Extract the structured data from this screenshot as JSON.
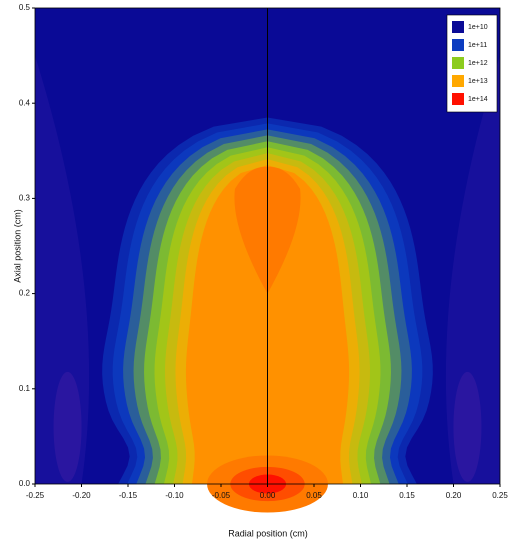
{
  "chart_data": {
    "type": "contour",
    "xlabel": "Radial position (cm)",
    "ylabel": "Axial position (cm)",
    "xlim": [
      -0.25,
      0.25
    ],
    "ylim": [
      0,
      0.5
    ],
    "xticks": [
      -0.25,
      {
        "value": -0.2,
        "label": "-0.20"
      },
      -0.15,
      {
        "value": -0.1,
        "label": "-0.10"
      },
      -0.05,
      {
        "value": 0,
        "label": "0.00"
      },
      0.05,
      {
        "value": 0.1,
        "label": "0.10"
      },
      0.15,
      {
        "value": 0.2,
        "label": "0.20"
      },
      0.25
    ],
    "yticks": [
      {
        "value": 0,
        "label": "0.0"
      },
      0.1,
      0.2,
      0.3,
      0.4,
      0.5
    ],
    "levels": [
      {
        "value": 10000000000,
        "label": "1e+10",
        "color": "#0a0a96"
      },
      {
        "value": 100000000000,
        "label": "1e+11",
        "color": "#0c3cc0"
      },
      {
        "value": 1000000000000,
        "label": "1e+12",
        "color": "#8ccc1e"
      },
      {
        "value": 10000000000000,
        "label": "1e+13",
        "color": "#ffa800"
      },
      {
        "value": 100000000000000,
        "label": "1e+14",
        "color": "#ff1000"
      }
    ],
    "legend": "upper right"
  }
}
